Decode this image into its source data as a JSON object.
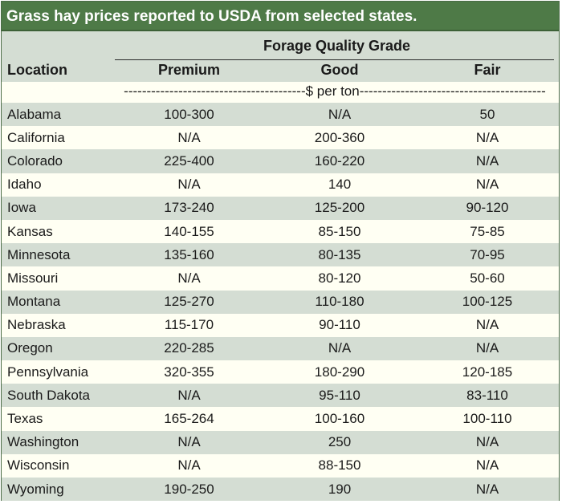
{
  "title": "Grass hay prices reported to USDA from selected states.",
  "header": {
    "grade_title": "Forage Quality Grade",
    "location": "Location",
    "premium": "Premium",
    "good": "Good",
    "fair": "Fair"
  },
  "units": "----------------------------------------$ per ton-----------------------------------------",
  "colors": {
    "title_bg": "#4e7a47",
    "row_green": "#d4ddd3",
    "row_cream": "#fffff3"
  },
  "rows": [
    {
      "location": "Alabama",
      "premium": "100-300",
      "good": "N/A",
      "fair": "50"
    },
    {
      "location": "California",
      "premium": "N/A",
      "good": "200-360",
      "fair": "N/A"
    },
    {
      "location": "Colorado",
      "premium": "225-400",
      "good": "160-220",
      "fair": "N/A"
    },
    {
      "location": "Idaho",
      "premium": "N/A",
      "good": "140",
      "fair": "N/A"
    },
    {
      "location": "Iowa",
      "premium": "173-240",
      "good": "125-200",
      "fair": "90-120"
    },
    {
      "location": "Kansas",
      "premium": "140-155",
      "good": "85-150",
      "fair": "75-85"
    },
    {
      "location": "Minnesota",
      "premium": "135-160",
      "good": "80-135",
      "fair": "70-95"
    },
    {
      "location": "Missouri",
      "premium": "N/A",
      "good": "80-120",
      "fair": "50-60"
    },
    {
      "location": "Montana",
      "premium": "125-270",
      "good": "110-180",
      "fair": "100-125"
    },
    {
      "location": "Nebraska",
      "premium": "115-170",
      "good": "90-110",
      "fair": "N/A"
    },
    {
      "location": "Oregon",
      "premium": "220-285",
      "good": "N/A",
      "fair": "N/A"
    },
    {
      "location": "Pennsylvania",
      "premium": "320-355",
      "good": "180-290",
      "fair": "120-185"
    },
    {
      "location": "South Dakota",
      "premium": "N/A",
      "good": "95-110",
      "fair": "83-110"
    },
    {
      "location": "Texas",
      "premium": "165-264",
      "good": "100-160",
      "fair": "100-110"
    },
    {
      "location": "Washington",
      "premium": "N/A",
      "good": "250",
      "fair": "N/A"
    },
    {
      "location": "Wisconsin",
      "premium": "N/A",
      "good": "88-150",
      "fair": "N/A"
    },
    {
      "location": "Wyoming",
      "premium": "190-250",
      "good": "190",
      "fair": "N/A"
    }
  ]
}
